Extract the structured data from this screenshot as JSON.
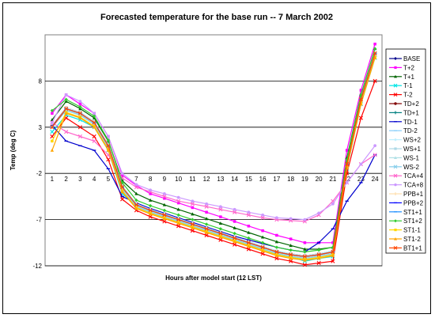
{
  "chart_data": {
    "type": "line",
    "title": "Forecasted temperature for the base run -- 7 March 2002",
    "xlabel": "Hours after model start (12 LST)",
    "ylabel": "Temp (deg C)",
    "ylim": [
      -12,
      13
    ],
    "yticks": [
      -12,
      -7,
      -2,
      3,
      8
    ],
    "x": [
      1,
      2,
      3,
      4,
      5,
      6,
      7,
      8,
      9,
      10,
      11,
      12,
      13,
      14,
      15,
      16,
      17,
      18,
      19,
      20,
      21,
      22,
      23,
      24
    ],
    "grid": "horizontal",
    "legend_position": "right",
    "series": [
      {
        "name": "BASE",
        "color": "#00008b",
        "marker": "diamond",
        "values": [
          3,
          5,
          4.5,
          3.5,
          1,
          -3.5,
          -5.4,
          -6,
          -6.5,
          -7,
          -7.5,
          -8,
          -8.5,
          -9,
          -9.5,
          -10,
          -10.5,
          -10.8,
          -11,
          -10.8,
          -10.5,
          -1,
          6,
          11
        ]
      },
      {
        "name": "T+2",
        "color": "#ff00ff",
        "marker": "square",
        "values": [
          4.5,
          6.5,
          5.5,
          4.5,
          2,
          -2.2,
          -3.3,
          -4.2,
          -4.7,
          -5.2,
          -5.7,
          -6.2,
          -6.7,
          -7.2,
          -7.7,
          -8.2,
          -8.7,
          -9.1,
          -9.5,
          -9.5,
          -9.5,
          0.5,
          7,
          12
        ]
      },
      {
        "name": "T+1",
        "color": "#006400",
        "marker": "triangle",
        "values": [
          3.8,
          5.8,
          5,
          4,
          1.5,
          -2.8,
          -4.2,
          -4.9,
          -5.4,
          -5.9,
          -6.4,
          -6.9,
          -7.4,
          -7.9,
          -8.4,
          -8.9,
          -9.4,
          -9.8,
          -10.2,
          -10.2,
          -10,
          -0.3,
          6.5,
          11.5
        ]
      },
      {
        "name": "T-1",
        "color": "#00e5e5",
        "marker": "x",
        "values": [
          2.5,
          4.3,
          3.8,
          3,
          0.5,
          -4.2,
          -5.5,
          -6.2,
          -6.7,
          -7.2,
          -7.7,
          -8.2,
          -8.7,
          -9.2,
          -9.7,
          -10.2,
          -10.7,
          -11,
          -11.5,
          -11.2,
          -11,
          -1.5,
          5.5,
          10.5
        ]
      },
      {
        "name": "T-2",
        "color": "#ff0000",
        "marker": "x",
        "values": [
          2,
          4,
          3,
          2,
          -0.5,
          -4.8,
          -6,
          -6.7,
          -7.2,
          -7.7,
          -8.2,
          -8.7,
          -9.2,
          -9.7,
          -10.2,
          -10.7,
          -11.2,
          -11.5,
          -11.9,
          -11.7,
          -11.5,
          -2,
          4,
          8
        ]
      },
      {
        "name": "TD+2",
        "color": "#800000",
        "marker": "circle",
        "values": [
          3.1,
          5.1,
          4.6,
          3.6,
          1.1,
          -3.4,
          -5.3,
          -5.9,
          -6.4,
          -6.9,
          -7.4,
          -7.9,
          -8.4,
          -8.9,
          -9.4,
          -9.9,
          -10.4,
          -10.7,
          -10.9,
          -10.7,
          -10.4,
          -0.9,
          6.1,
          11
        ]
      },
      {
        "name": "TD+1",
        "color": "#008080",
        "marker": "plus",
        "values": [
          3,
          5,
          4.5,
          3.5,
          1,
          -3.5,
          -5.4,
          -6,
          -6.5,
          -7,
          -7.5,
          -8,
          -8.5,
          -9,
          -9.5,
          -10,
          -10.5,
          -10.8,
          -11,
          -10.8,
          -10.5,
          -1,
          6,
          11
        ]
      },
      {
        "name": "TD-1",
        "color": "#0000cd",
        "marker": "dash",
        "values": [
          3.2,
          1.5,
          1,
          0.5,
          -1.5,
          -4.5,
          -5.2,
          -5.8,
          -6.3,
          -6.8,
          -7.3,
          -7.8,
          -8.3,
          -8.8,
          -9.2,
          -9.6,
          -10,
          -10.3,
          -10.5,
          -9.5,
          -8,
          -5,
          -3,
          0
        ]
      },
      {
        "name": "TD-2",
        "color": "#87cefa",
        "marker": "dash",
        "values": [
          3,
          5,
          4.5,
          3.5,
          1,
          -3.5,
          -5.3,
          -5.9,
          -6.4,
          -6.9,
          -7.4,
          -7.9,
          -8.4,
          -8.9,
          -9.4,
          -9.9,
          -10.4,
          -10.7,
          -10.9,
          -10.7,
          -10.4,
          -1,
          6,
          11
        ]
      },
      {
        "name": "WS+2",
        "color": "#bfefff",
        "marker": "diamond",
        "values": [
          3,
          5.1,
          4.6,
          3.6,
          1.1,
          -3.4,
          -5.3,
          -5.9,
          -6.4,
          -6.9,
          -7.4,
          -7.9,
          -8.4,
          -8.9,
          -9.4,
          -9.9,
          -10.4,
          -10.7,
          -10.9,
          -10.7,
          -10.4,
          -0.9,
          6.1,
          11
        ]
      },
      {
        "name": "WS+1",
        "color": "#add8e6",
        "marker": "square",
        "values": [
          3,
          5,
          4.5,
          3.5,
          1,
          -3.5,
          -5.4,
          -6,
          -6.5,
          -7,
          -7.5,
          -8,
          -8.5,
          -9,
          -9.5,
          -10,
          -10.5,
          -10.8,
          -11,
          -10.8,
          -10.5,
          -1,
          6,
          11
        ]
      },
      {
        "name": "WS-1",
        "color": "#b0e0e6",
        "marker": "triangle",
        "values": [
          3,
          4.9,
          4.4,
          3.4,
          0.9,
          -3.6,
          -5.5,
          -6.1,
          -6.6,
          -7.1,
          -7.6,
          -8.1,
          -8.6,
          -9.1,
          -9.6,
          -10.1,
          -10.6,
          -10.9,
          -11.1,
          -10.9,
          -10.6,
          -1.1,
          5.9,
          10.9
        ]
      },
      {
        "name": "WS-2",
        "color": "#87ceeb",
        "marker": "x",
        "values": [
          3,
          4.8,
          4.3,
          3.3,
          0.8,
          -3.7,
          -5.6,
          -6.2,
          -6.7,
          -7.2,
          -7.7,
          -8.2,
          -8.7,
          -9.2,
          -9.7,
          -10.2,
          -10.7,
          -11,
          -11.2,
          -11,
          -10.7,
          -1.2,
          5.8,
          10.8
        ]
      },
      {
        "name": "TCA+4",
        "color": "#ff66cc",
        "marker": "x",
        "values": [
          3.5,
          2.5,
          2,
          1.5,
          0,
          -2.5,
          -3.5,
          -4,
          -4.5,
          -5,
          -5.3,
          -5.6,
          -5.9,
          -6.2,
          -6.5,
          -6.8,
          -7,
          -7.1,
          -7.2,
          -6.5,
          -5,
          -3,
          -1,
          0
        ]
      },
      {
        "name": "TCA+8",
        "color": "#cc99ff",
        "marker": "circle",
        "values": [
          3.5,
          6.5,
          5.8,
          4.5,
          2,
          -2,
          -3.2,
          -3.8,
          -4.2,
          -4.6,
          -5,
          -5.3,
          -5.6,
          -5.9,
          -6.2,
          -6.5,
          -6.8,
          -6.9,
          -7,
          -6.3,
          -5.3,
          -3,
          -1,
          1
        ]
      },
      {
        "name": "PPB+1",
        "color": "#ffdead",
        "marker": "plus",
        "values": [
          3,
          5,
          4.5,
          3.5,
          1,
          -3.5,
          -5.4,
          -6,
          -6.5,
          -7,
          -7.5,
          -8,
          -8.5,
          -9,
          -9.5,
          -10,
          -10.5,
          -10.8,
          -11,
          -10.8,
          -10.5,
          -1,
          6,
          11
        ]
      },
      {
        "name": "PPB+2",
        "color": "#0000ff",
        "marker": "dash",
        "values": [
          3,
          5,
          4.5,
          3.5,
          1,
          -3.5,
          -5.4,
          -6,
          -6.5,
          -7,
          -7.5,
          -8,
          -8.5,
          -9,
          -9.5,
          -10,
          -10.5,
          -10.8,
          -11,
          -10.8,
          -10.5,
          -1,
          6,
          11
        ]
      },
      {
        "name": "ST1+1",
        "color": "#1e90ff",
        "marker": "dash",
        "values": [
          3,
          5,
          4.5,
          3.5,
          1,
          -3.5,
          -5.4,
          -6,
          -6.5,
          -7,
          -7.5,
          -8,
          -8.5,
          -9,
          -9.5,
          -10,
          -10.5,
          -10.8,
          -11,
          -10.8,
          -10.5,
          -1,
          6,
          11
        ]
      },
      {
        "name": "ST1+2",
        "color": "#32cd32",
        "marker": "diamond",
        "values": [
          4.8,
          6,
          5.2,
          4.2,
          1.6,
          -3,
          -4.9,
          -5.5,
          -6,
          -6.5,
          -7,
          -7.5,
          -8,
          -8.5,
          -9,
          -9.5,
          -10,
          -10.3,
          -10.5,
          -10.3,
          -10,
          -0.5,
          6.5,
          11.5
        ]
      },
      {
        "name": "ST1-1",
        "color": "#ffd700",
        "marker": "square",
        "values": [
          1.5,
          4.6,
          4.1,
          3.1,
          0.6,
          -3.9,
          -5.7,
          -6.3,
          -6.8,
          -7.3,
          -7.8,
          -8.3,
          -8.8,
          -9.3,
          -9.8,
          -10.3,
          -10.8,
          -11.1,
          -11.3,
          -11.1,
          -10.8,
          -1.3,
          5.6,
          10.6
        ]
      },
      {
        "name": "ST1-2",
        "color": "#ffa500",
        "marker": "triangle",
        "values": [
          0.5,
          4.5,
          4,
          3,
          0.5,
          -4,
          -5.8,
          -6.4,
          -6.9,
          -7.4,
          -7.9,
          -8.4,
          -8.9,
          -9.4,
          -9.9,
          -10.4,
          -10.9,
          -11.2,
          -11.4,
          -11.2,
          -10.9,
          -1.4,
          5.5,
          10.5
        ]
      },
      {
        "name": "BT1+1",
        "color": "#ff4500",
        "marker": "x",
        "values": [
          3,
          5,
          4.5,
          3.5,
          1,
          -3.5,
          -5.4,
          -6,
          -6.5,
          -7,
          -7.5,
          -8,
          -8.5,
          -9,
          -9.5,
          -10,
          -10.5,
          -10.8,
          -11,
          -10.8,
          -10.5,
          -1,
          6,
          11
        ]
      }
    ]
  }
}
